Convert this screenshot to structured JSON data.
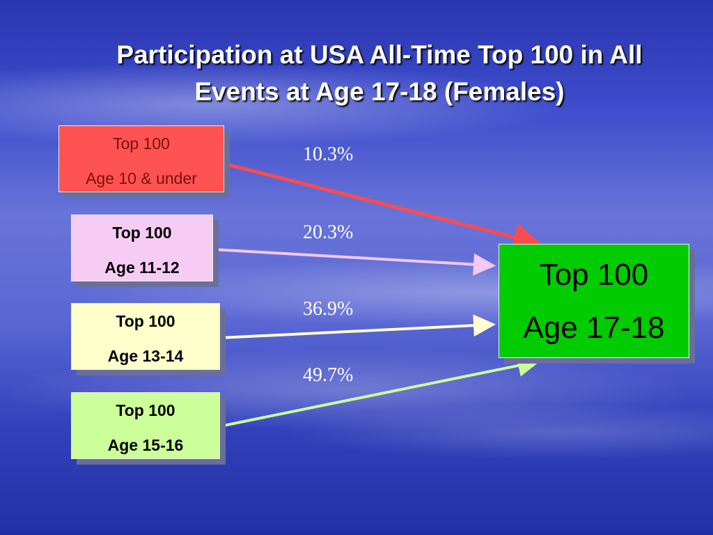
{
  "title": [
    "Participation at USA All-Time Top 100 in All",
    "Events at Age 17-18 (Females)"
  ],
  "nodes": [
    {
      "lines": [
        "Top 100",
        "Age 10 & under"
      ]
    },
    {
      "lines": [
        "Top 100",
        "Age 11-12"
      ]
    },
    {
      "lines": [
        "Top 100",
        "Age 13-14"
      ]
    },
    {
      "lines": [
        "Top 100",
        "Age 15-16"
      ]
    },
    {
      "lines": [
        "Top 100",
        "Age 17-18"
      ]
    }
  ],
  "edges": [
    {
      "label": "10.3%"
    },
    {
      "label": "20.3%"
    },
    {
      "label": "36.9%"
    },
    {
      "label": "49.7%"
    }
  ]
}
